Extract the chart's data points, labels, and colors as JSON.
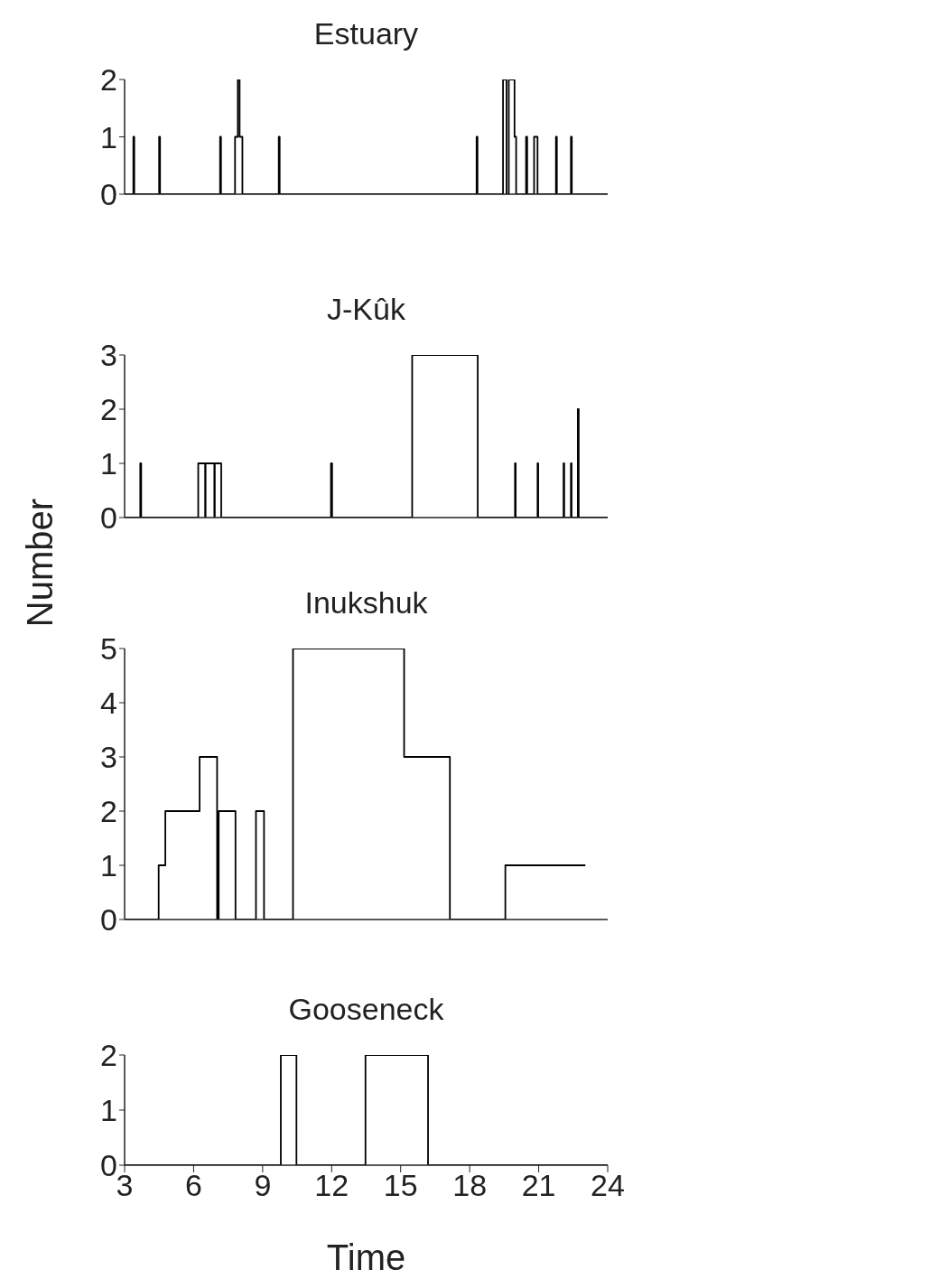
{
  "chart_data": [
    {
      "type": "step",
      "title": "Estuary",
      "color": "#000000",
      "marker": "none",
      "line_style": "solid",
      "tick_labels": "y",
      "xlim": [
        3,
        24
      ],
      "xticks": [
        3,
        6,
        9,
        12,
        15,
        18,
        21,
        24
      ],
      "ylim": [
        0,
        2
      ],
      "yticks": [
        0,
        1,
        2
      ],
      "x": [
        3,
        3.38,
        3.42,
        4.5,
        4.54,
        7.15,
        7.19,
        7.8,
        7.92,
        8.0,
        8.12,
        9.7,
        9.74,
        18.3,
        18.34,
        19.45,
        19.6,
        19.7,
        19.95,
        20.02,
        20.45,
        20.5,
        20.8,
        20.95,
        21.75,
        21.79,
        22.4,
        22.44,
        24
      ],
      "values": [
        0,
        1,
        0,
        1,
        0,
        1,
        0,
        1,
        2,
        1,
        0,
        1,
        0,
        1,
        0,
        2,
        0,
        2,
        1,
        0,
        1,
        0,
        1,
        0,
        1,
        0,
        1,
        0,
        0
      ]
    },
    {
      "type": "step",
      "title": "J-Kûk",
      "ylabel": "Number",
      "color": "#000000",
      "marker": "none",
      "line_style": "solid",
      "tick_labels": "y",
      "xlim": [
        3,
        24
      ],
      "xticks": [
        3,
        6,
        9,
        12,
        15,
        18,
        21,
        24
      ],
      "ylim": [
        0,
        3
      ],
      "yticks": [
        0,
        1,
        2,
        3
      ],
      "x": [
        3,
        3.68,
        3.72,
        6.2,
        6.5,
        6.52,
        6.9,
        6.92,
        7.2,
        11.97,
        12.02,
        15.5,
        18.35,
        19.97,
        20.0,
        20.95,
        20.98,
        22.08,
        22.11,
        22.4,
        22.43,
        22.7,
        22.74,
        24
      ],
      "values": [
        0,
        1,
        0,
        1,
        0,
        1,
        0,
        1,
        0,
        1,
        0,
        3,
        0,
        1,
        0,
        1,
        0,
        1,
        0,
        1,
        0,
        2,
        0,
        0
      ]
    },
    {
      "type": "step",
      "title": "Inukshuk",
      "color": "#000000",
      "marker": "none",
      "line_style": "solid",
      "tick_labels": "y",
      "xlim": [
        3,
        24
      ],
      "xticks": [
        3,
        6,
        9,
        12,
        15,
        18,
        21,
        24
      ],
      "ylim": [
        0,
        5
      ],
      "yticks": [
        0,
        1,
        2,
        3,
        4,
        5
      ],
      "x": [
        3,
        4.48,
        4.77,
        6.26,
        7.02,
        7.09,
        7.82,
        8.71,
        9.06,
        10.32,
        15.15,
        17.14,
        19.55,
        23.03
      ],
      "values": [
        0,
        1,
        2,
        3,
        0,
        2,
        0,
        2,
        0,
        5,
        3,
        0,
        1,
        1
      ]
    },
    {
      "type": "step",
      "title": "Gooseneck",
      "xlabel": "Time",
      "color": "#000000",
      "marker": "none",
      "line_style": "solid",
      "xlim": [
        3,
        24
      ],
      "xticks": [
        3,
        6,
        9,
        12,
        15,
        18,
        21,
        24
      ],
      "ylim": [
        0,
        2
      ],
      "yticks": [
        0,
        1,
        2
      ],
      "x": [
        3,
        9.79,
        10.47,
        13.47,
        16.19,
        24
      ],
      "values": [
        0,
        2,
        0,
        2,
        0,
        0
      ]
    }
  ]
}
